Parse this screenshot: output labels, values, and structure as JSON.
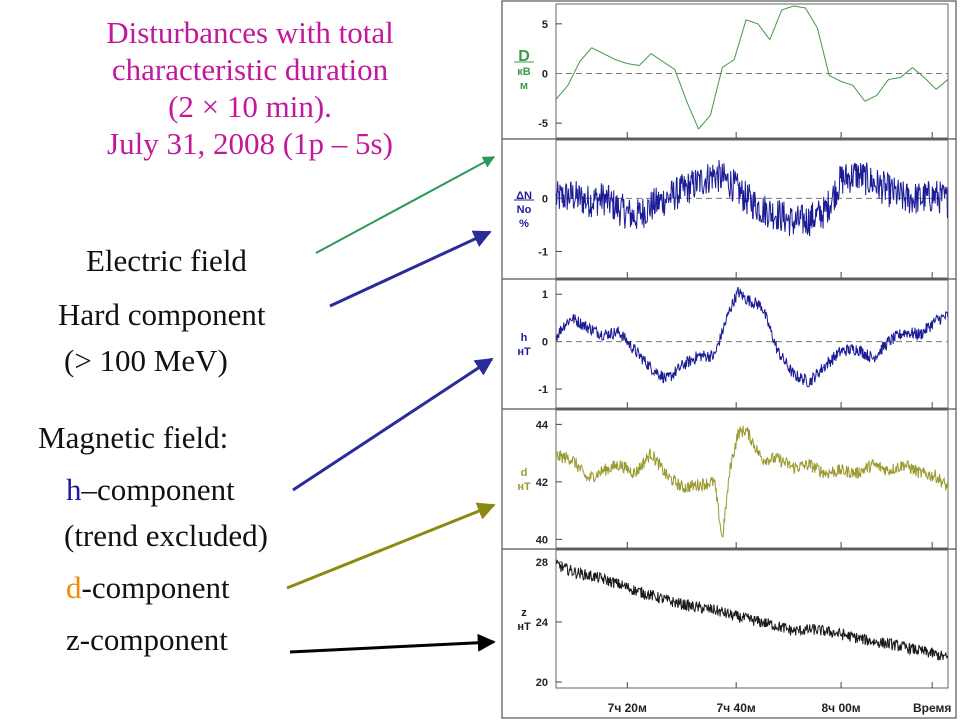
{
  "title_lines": [
    "Disturbances with total",
    "characteristic  duration",
    "(2 × 10 min).",
    "July 31, 2008 (1p – 5s)"
  ],
  "labels": {
    "electric": "Electric  field",
    "hard": "Hard component",
    "hard_energy": "(> 100 MeV)",
    "magnetic": "Magnetic field:",
    "h_letter": "h",
    "h_rest": "–component",
    "trend": "(trend excluded)",
    "d_letter": "d",
    "d_rest": "-component",
    "z": "z-component"
  },
  "colors": {
    "title": "#c2189c",
    "D": "#3f9a45",
    "N": "#1c1c96",
    "h": "#1c1c96",
    "d": "#9a9a30",
    "z": "#1a1a1a",
    "arrow_electric": "#2a9a5a",
    "arrow_hard": "#2b2b9a",
    "arrow_h": "#2b2b9a",
    "arrow_d": "#8a8a10",
    "arrow_z": "#000000",
    "highlight_d": "#f08a00"
  },
  "chart_data": [
    {
      "type": "line",
      "ylabel": [
        "D",
        "кВ",
        "м"
      ],
      "yticks": [
        5,
        0,
        -5
      ],
      "ylim": [
        -6.5,
        7
      ],
      "zero_line": true,
      "color": "#3f9a45",
      "x": [
        0,
        3,
        6,
        9,
        12,
        15,
        18,
        21,
        24,
        27,
        30,
        33,
        36,
        39,
        42,
        45,
        48,
        51,
        54,
        57,
        60,
        63,
        66,
        69,
        72,
        75,
        78,
        81,
        84,
        87,
        90,
        93,
        96,
        99
      ],
      "values": [
        -2.6,
        -1.2,
        1.2,
        2.6,
        2.0,
        1.4,
        1.0,
        0.8,
        2.0,
        1.2,
        0.4,
        -2.8,
        -5.6,
        -4.2,
        0.6,
        1.4,
        5.4,
        5.0,
        3.4,
        6.4,
        6.8,
        6.6,
        4.6,
        -0.2,
        -0.8,
        -1.2,
        -2.8,
        -2.2,
        -0.6,
        -0.4,
        0.6,
        -0.4,
        -1.6,
        -0.6
      ]
    },
    {
      "type": "line",
      "ylabel": [
        "ΔN",
        "No",
        "%"
      ],
      "yticks": [
        0,
        -1
      ],
      "ylim": [
        -1.5,
        1.1
      ],
      "zero_line": true,
      "color": "#1c1c96",
      "noise": 0.32,
      "x": [
        0,
        4,
        8,
        12,
        16,
        20,
        24,
        28,
        32,
        36,
        40,
        44,
        48,
        52,
        56,
        60,
        64,
        68,
        72,
        76,
        80,
        84,
        88,
        92,
        96,
        99
      ],
      "values": [
        0.0,
        0.05,
        -0.05,
        0.0,
        -0.2,
        -0.35,
        -0.15,
        0.0,
        0.15,
        0.3,
        0.45,
        0.3,
        0.0,
        -0.2,
        -0.3,
        -0.45,
        -0.4,
        -0.25,
        0.35,
        0.45,
        0.3,
        0.15,
        0.0,
        0.0,
        0.05,
        -0.05
      ]
    },
    {
      "type": "line",
      "ylabel": [
        "h",
        "нТ"
      ],
      "yticks": [
        1,
        0,
        -1
      ],
      "ylim": [
        -1.4,
        1.3
      ],
      "zero_line": true,
      "color": "#1c1c96",
      "noise": 0.13,
      "x": [
        0,
        2,
        4,
        8,
        12,
        16,
        20,
        24,
        28,
        32,
        36,
        40,
        44,
        46,
        48,
        52,
        56,
        60,
        64,
        68,
        72,
        76,
        80,
        84,
        88,
        92,
        96,
        99
      ],
      "values": [
        0.1,
        0.35,
        0.5,
        0.3,
        0.15,
        0.2,
        -0.2,
        -0.55,
        -0.8,
        -0.5,
        -0.3,
        -0.3,
        0.7,
        1.05,
        0.9,
        0.75,
        -0.2,
        -0.7,
        -0.85,
        -0.5,
        -0.2,
        -0.15,
        -0.35,
        0.0,
        0.2,
        0.15,
        0.45,
        0.55
      ]
    },
    {
      "type": "line",
      "ylabel": [
        "d",
        "нТ"
      ],
      "yticks": [
        44,
        42,
        40
      ],
      "ylim": [
        39.7,
        44.5
      ],
      "color": "#9a9a30",
      "noise": 0.22,
      "x": [
        0,
        4,
        8,
        12,
        16,
        20,
        24,
        28,
        32,
        36,
        40,
        42,
        44,
        46,
        48,
        52,
        56,
        60,
        64,
        68,
        72,
        76,
        80,
        84,
        88,
        92,
        96,
        99
      ],
      "values": [
        42.9,
        42.8,
        42.1,
        42.4,
        42.6,
        42.3,
        43.0,
        42.2,
        41.8,
        41.9,
        42.0,
        40.0,
        42.5,
        43.7,
        43.8,
        42.8,
        42.8,
        42.5,
        42.6,
        42.3,
        42.4,
        42.3,
        42.6,
        42.4,
        42.6,
        42.3,
        42.2,
        41.8
      ]
    },
    {
      "type": "line",
      "ylabel": [
        "z",
        "нТ"
      ],
      "yticks": [
        28,
        24,
        20
      ],
      "ylim": [
        19.6,
        28.8
      ],
      "color": "#1a1a1a",
      "noise": 0.38,
      "x": [
        0,
        5,
        10,
        15,
        20,
        25,
        30,
        35,
        40,
        45,
        50,
        55,
        60,
        65,
        70,
        75,
        80,
        85,
        90,
        95,
        99
      ],
      "values": [
        27.8,
        27.3,
        27.0,
        26.6,
        26.1,
        25.7,
        25.3,
        25.0,
        24.8,
        24.4,
        24.1,
        23.8,
        23.4,
        23.5,
        23.3,
        23.0,
        22.7,
        22.5,
        22.2,
        21.9,
        21.6
      ]
    }
  ],
  "xticks": [
    "7ч 20м",
    "7ч 40м",
    "8ч 00м",
    "Время"
  ],
  "xtick_positions": [
    18,
    45.5,
    72,
    95
  ]
}
